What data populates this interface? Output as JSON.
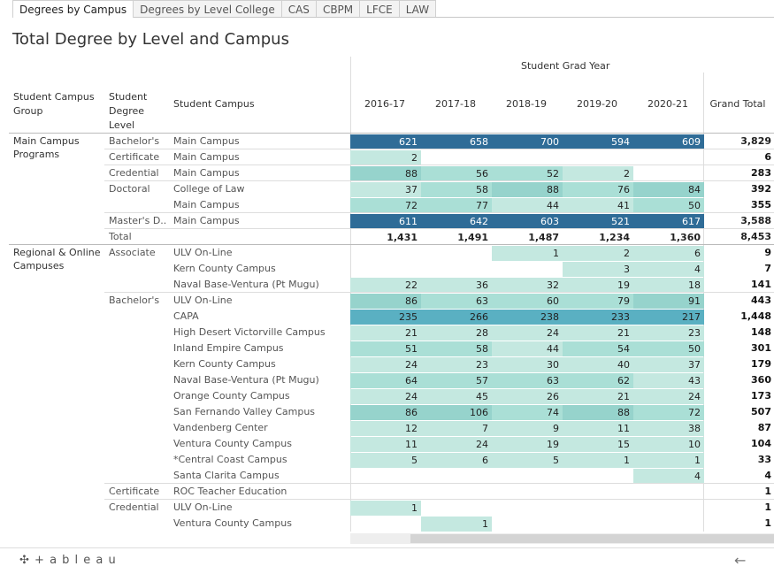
{
  "tabs": [
    "Degrees by Campus",
    "Degrees by Level College",
    "CAS",
    "CBPM",
    "LFCE",
    "LAW"
  ],
  "active_tab": 0,
  "title": "Total Degree by Level and Campus",
  "headers": {
    "campus_group": "Student Campus Group",
    "degree_level": "Student Degree Level",
    "campus": "Student Campus",
    "grad_year": "Student Grad Year",
    "years": [
      "2016-17",
      "2017-18",
      "2018-19",
      "2019-20",
      "2020-21"
    ],
    "grand_total": "Grand Total"
  },
  "groups": [
    {
      "label": "Main Campus Programs",
      "start_row": 0
    },
    {
      "label": "Regional & Online Campuses",
      "start_row": 7
    }
  ],
  "rows": [
    {
      "level": "Bachelor's",
      "campus": "Main Campus",
      "values": [
        621,
        658,
        700,
        594,
        609
      ],
      "total": "3,829"
    },
    {
      "level": "Certificate",
      "campus": "Main Campus",
      "values": [
        2,
        null,
        null,
        null,
        null
      ],
      "total": "6"
    },
    {
      "level": "Credential",
      "campus": "Main Campus",
      "values": [
        88,
        56,
        52,
        2,
        null
      ],
      "total": "283"
    },
    {
      "level": "Doctoral",
      "campus": "College of Law",
      "values": [
        37,
        58,
        88,
        76,
        84
      ],
      "total": "392"
    },
    {
      "level": "",
      "campus": "Main Campus",
      "values": [
        72,
        77,
        44,
        41,
        50
      ],
      "total": "355"
    },
    {
      "level": "Master's D..",
      "campus": "Main Campus",
      "values": [
        611,
        642,
        603,
        521,
        617
      ],
      "total": "3,588"
    },
    {
      "level": "Total",
      "campus": "",
      "values": [
        "1,431",
        "1,491",
        "1,487",
        "1,234",
        "1,360"
      ],
      "total": "8,453",
      "is_total": true
    },
    {
      "level": "Associate",
      "campus": "ULV On-Line",
      "values": [
        null,
        null,
        1,
        2,
        6
      ],
      "total": "9"
    },
    {
      "level": "",
      "campus": "Kern County Campus",
      "values": [
        null,
        null,
        null,
        3,
        4
      ],
      "total": "7"
    },
    {
      "level": "",
      "campus": "Naval Base-Ventura (Pt Mugu)",
      "values": [
        22,
        36,
        32,
        19,
        18
      ],
      "total": "141"
    },
    {
      "level": "Bachelor's",
      "campus": "ULV On-Line",
      "values": [
        86,
        63,
        60,
        79,
        91
      ],
      "total": "443"
    },
    {
      "level": "",
      "campus": "CAPA",
      "values": [
        235,
        266,
        238,
        233,
        217
      ],
      "total": "1,448"
    },
    {
      "level": "",
      "campus": "High Desert Victorville Campus",
      "values": [
        21,
        28,
        24,
        21,
        23
      ],
      "total": "148"
    },
    {
      "level": "",
      "campus": "Inland Empire Campus",
      "values": [
        51,
        58,
        44,
        54,
        50
      ],
      "total": "301"
    },
    {
      "level": "",
      "campus": "Kern County Campus",
      "values": [
        24,
        23,
        30,
        40,
        37
      ],
      "total": "179"
    },
    {
      "level": "",
      "campus": "Naval Base-Ventura (Pt Mugu)",
      "values": [
        64,
        57,
        63,
        62,
        43
      ],
      "total": "360"
    },
    {
      "level": "",
      "campus": "Orange County Campus",
      "values": [
        24,
        45,
        26,
        21,
        24
      ],
      "total": "173"
    },
    {
      "level": "",
      "campus": "San Fernando Valley Campus",
      "values": [
        86,
        106,
        74,
        88,
        72
      ],
      "total": "507"
    },
    {
      "level": "",
      "campus": "Vandenberg Center",
      "values": [
        12,
        7,
        9,
        11,
        38
      ],
      "total": "87"
    },
    {
      "level": "",
      "campus": "Ventura County Campus",
      "values": [
        11,
        24,
        19,
        15,
        10
      ],
      "total": "104"
    },
    {
      "level": "",
      "campus": "*Central Coast Campus",
      "values": [
        5,
        6,
        5,
        1,
        1
      ],
      "total": "33"
    },
    {
      "level": "",
      "campus": "Santa Clarita Campus",
      "values": [
        null,
        null,
        null,
        null,
        4
      ],
      "total": "4"
    },
    {
      "level": "Certificate",
      "campus": "ROC Teacher Education",
      "values": [
        null,
        null,
        null,
        null,
        null
      ],
      "total": "1"
    },
    {
      "level": "Credential",
      "campus": "ULV On-Line",
      "values": [
        1,
        null,
        null,
        null,
        null
      ],
      "total": "1"
    },
    {
      "level": "",
      "campus": "Ventura County Campus",
      "values": [
        null,
        1,
        null,
        null,
        null
      ],
      "total": "1"
    }
  ],
  "colors": {
    "low": "#c6e8e0",
    "mid": "#8fcfca",
    "high": "#2e6d98"
  },
  "footer": {
    "logo": "+ a b l e a u",
    "back_icon": "arrow-left-icon"
  }
}
